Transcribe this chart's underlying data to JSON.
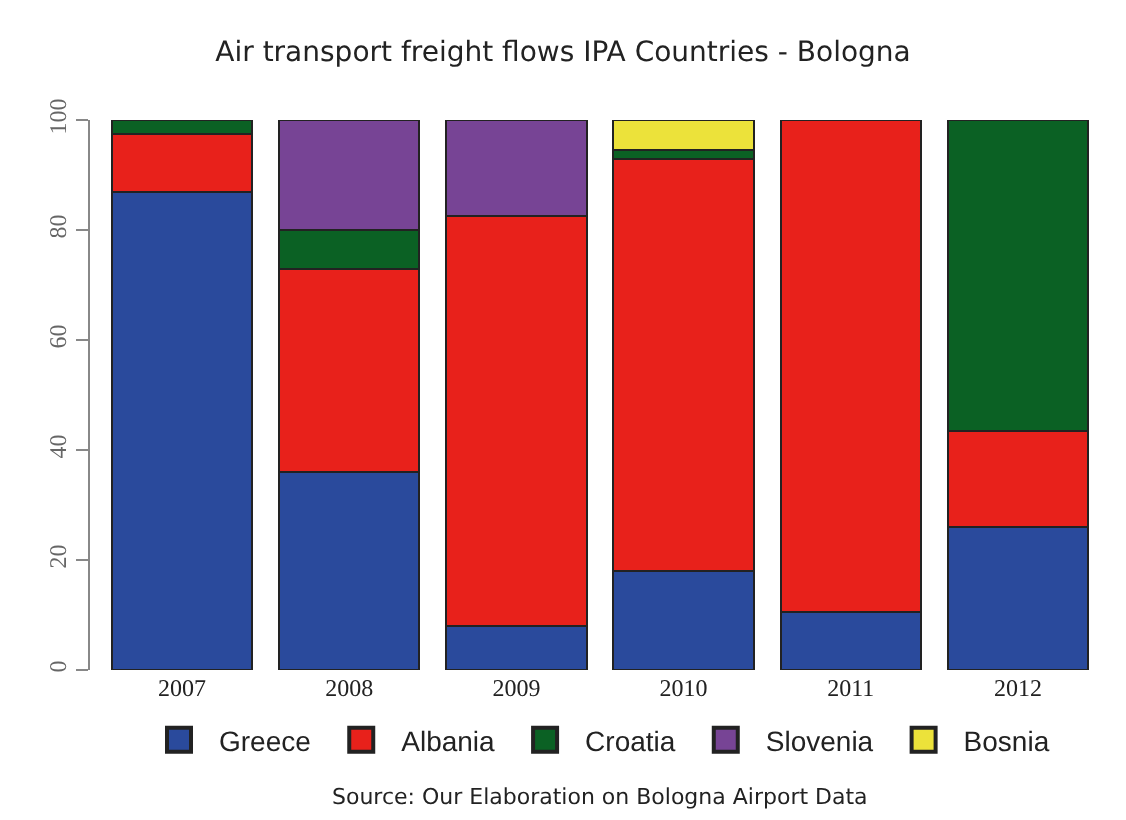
{
  "chart_data": {
    "type": "bar",
    "stacked": true,
    "title": "Air transport freight flows IPA Countries - Bologna",
    "categories": [
      "2007",
      "2008",
      "2009",
      "2010",
      "2011",
      "2012"
    ],
    "series": [
      {
        "name": "Greece",
        "color": "#2a4a9c",
        "values": [
          87,
          36,
          8,
          18,
          10.5,
          26
        ]
      },
      {
        "name": "Albania",
        "color": "#e8211b",
        "values": [
          10.5,
          37,
          74.5,
          75,
          89.5,
          17.5
        ]
      },
      {
        "name": "Croatia",
        "color": "#0b6124",
        "values": [
          2.5,
          7,
          null,
          1.5,
          null,
          56.5
        ]
      },
      {
        "name": "Slovenia",
        "color": "#774495",
        "values": [
          null,
          20,
          17.5,
          null,
          null,
          null
        ]
      },
      {
        "name": "Bosnia",
        "color": "#ece23a",
        "values": [
          null,
          null,
          null,
          5.5,
          null,
          null
        ]
      }
    ],
    "ylim": [
      0,
      100
    ],
    "yticks": [
      0,
      20,
      40,
      60,
      80,
      100
    ],
    "legend": "bottom",
    "annotations": [
      "Source: Our Elaboration on Bologna Airport Data"
    ]
  }
}
